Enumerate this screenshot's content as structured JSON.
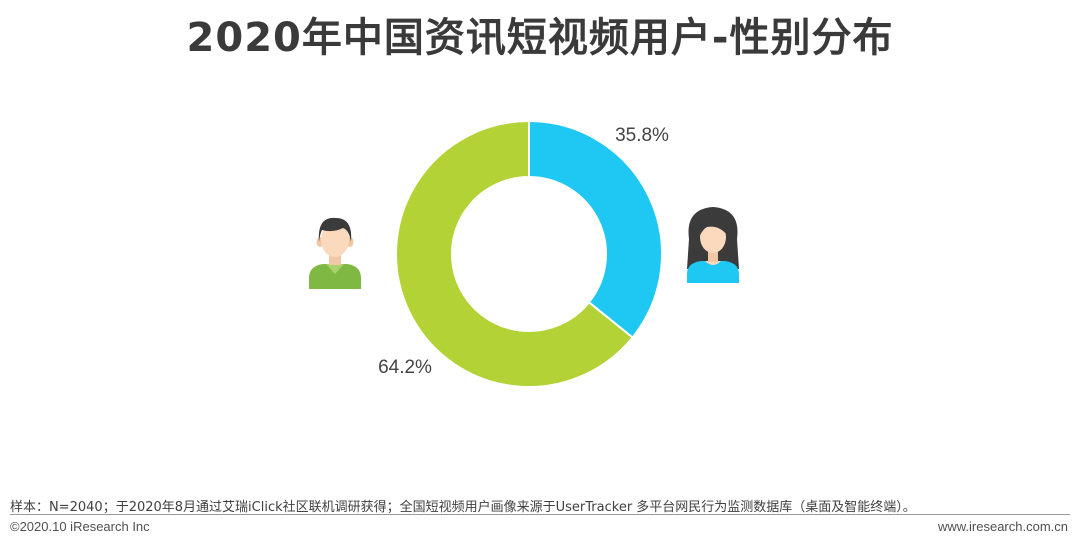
{
  "title": "2020年中国资讯短视频用户-性别分布",
  "chart_data": {
    "type": "pie",
    "donut": true,
    "title": "2020年中国资讯短视频用户-性别分布",
    "slices": [
      {
        "value": 35.8,
        "label": "35.8%",
        "color": "#1ec8f2",
        "icon": "female-user-icon"
      },
      {
        "value": 64.2,
        "label": "64.2%",
        "color": "#b2d235",
        "icon": "male-user-icon"
      }
    ]
  },
  "footer": {
    "note": "样本：N=2040；于2020年8月通过艾瑞iClick社区联机调研获得；全国短视频用户画像来源于UserTracker 多平台网民行为监测数据库（桌面及智能终端）。",
    "copyright": "©2020.10 iResearch Inc",
    "website": "www.iresearch.com.cn"
  }
}
